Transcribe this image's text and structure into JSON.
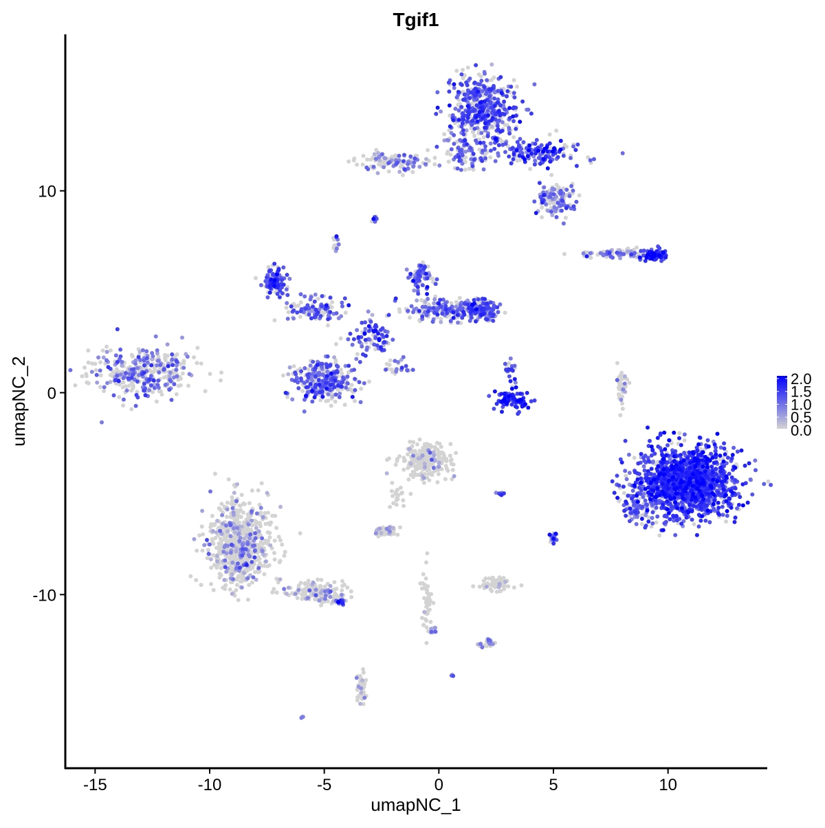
{
  "chart_data": {
    "type": "scatter",
    "title": "Tgif1",
    "xlabel": "umapNC_1",
    "ylabel": "umapNC_2",
    "xlim": [
      -16.3,
      14.3
    ],
    "ylim": [
      -18.6,
      17.75
    ],
    "x_ticks": [
      -15,
      -10,
      -5,
      0,
      5,
      10
    ],
    "y_ticks": [
      -10,
      0,
      10
    ],
    "x_tick_labels": [
      "-15",
      "-10",
      "-5",
      "0",
      "5",
      "10"
    ],
    "y_tick_labels": [
      "-10",
      "0",
      "10"
    ],
    "grid": false,
    "legend": {
      "placement": "right",
      "type": "colorbar",
      "range": [
        0,
        2
      ],
      "ticks": [
        "2.0",
        "1.5",
        "1.0",
        "0.5",
        "0.0"
      ],
      "low_color": "#d3d3d3",
      "high_color": "#0000ff"
    },
    "clusters_note_free": true,
    "clusters": [
      {
        "cx": -12.85,
        "cy": 1.05,
        "sx": 1.6,
        "sy": 0.8,
        "n": 350,
        "expr": 0.6
      },
      {
        "cx": 1.85,
        "cy": 14.0,
        "sx": 1.0,
        "sy": 1.2,
        "n": 450,
        "expr": 0.9
      },
      {
        "cx": 4.3,
        "cy": 11.9,
        "sx": 1.3,
        "sy": 0.45,
        "n": 150,
        "expr": 1.0
      },
      {
        "cx": 5.15,
        "cy": 9.6,
        "sx": 0.55,
        "sy": 0.55,
        "n": 120,
        "expr": 0.6
      },
      {
        "cx": -2.0,
        "cy": 11.45,
        "sx": 1.1,
        "sy": 0.3,
        "n": 120,
        "expr": 0.5
      },
      {
        "cx": 1.3,
        "cy": 11.8,
        "sx": 0.7,
        "sy": 0.5,
        "n": 80,
        "expr": 0.7
      },
      {
        "cx": -2.8,
        "cy": 8.6,
        "sx": 0.1,
        "sy": 0.1,
        "n": 10,
        "expr": 1.0
      },
      {
        "cx": -4.5,
        "cy": 7.45,
        "sx": 0.1,
        "sy": 0.2,
        "n": 12,
        "expr": 0.8
      },
      {
        "cx": 7.6,
        "cy": 6.9,
        "sx": 0.9,
        "sy": 0.15,
        "n": 70,
        "expr": 0.6
      },
      {
        "cx": 9.4,
        "cy": 6.85,
        "sx": 0.4,
        "sy": 0.2,
        "n": 80,
        "expr": 1.2
      },
      {
        "cx": -7.15,
        "cy": 5.5,
        "sx": 0.35,
        "sy": 0.5,
        "n": 120,
        "expr": 0.9
      },
      {
        "cx": -5.35,
        "cy": 4.1,
        "sx": 0.8,
        "sy": 0.4,
        "n": 100,
        "expr": 0.8
      },
      {
        "cx": -5.05,
        "cy": 0.55,
        "sx": 0.9,
        "sy": 0.65,
        "n": 300,
        "expr": 0.8
      },
      {
        "cx": 0.35,
        "cy": 4.1,
        "sx": 1.3,
        "sy": 0.35,
        "n": 200,
        "expr": 0.7
      },
      {
        "cx": 1.85,
        "cy": 4.1,
        "sx": 0.5,
        "sy": 0.35,
        "n": 150,
        "expr": 0.9
      },
      {
        "cx": -0.85,
        "cy": 5.8,
        "sx": 0.35,
        "sy": 0.45,
        "n": 80,
        "expr": 0.8
      },
      {
        "cx": -2.95,
        "cy": 2.75,
        "sx": 0.7,
        "sy": 0.55,
        "n": 80,
        "expr": 0.9
      },
      {
        "cx": -1.9,
        "cy": 1.2,
        "sx": 0.5,
        "sy": 0.3,
        "n": 25,
        "expr": 0.7
      },
      {
        "cx": 3.2,
        "cy": -0.4,
        "sx": 0.55,
        "sy": 0.3,
        "n": 80,
        "expr": 1.3
      },
      {
        "cx": 3.05,
        "cy": 1.05,
        "sx": 0.2,
        "sy": 0.4,
        "n": 20,
        "expr": 1.0
      },
      {
        "cx": 8.0,
        "cy": 0.2,
        "sx": 0.15,
        "sy": 0.7,
        "n": 40,
        "expr": 0.4
      },
      {
        "cx": 10.85,
        "cy": -4.4,
        "sx": 1.4,
        "sy": 1.15,
        "n": 1500,
        "expr": 1.1
      },
      {
        "cx": 8.6,
        "cy": -5.75,
        "sx": 0.45,
        "sy": 0.65,
        "n": 80,
        "expr": 0.8
      },
      {
        "cx": -0.55,
        "cy": -3.35,
        "sx": 0.7,
        "sy": 0.55,
        "n": 250,
        "expr": 0.15
      },
      {
        "cx": -2.35,
        "cy": -6.8,
        "sx": 0.35,
        "sy": 0.2,
        "n": 50,
        "expr": 0.3
      },
      {
        "cx": -1.75,
        "cy": -5.1,
        "sx": 0.3,
        "sy": 0.5,
        "n": 20,
        "expr": 0.1
      },
      {
        "cx": 2.45,
        "cy": -9.5,
        "sx": 0.45,
        "sy": 0.25,
        "n": 60,
        "expr": 0.1
      },
      {
        "cx": 5.0,
        "cy": -7.3,
        "sx": 0.1,
        "sy": 0.3,
        "n": 20,
        "expr": 1.0
      },
      {
        "cx": 2.75,
        "cy": -5.0,
        "sx": 0.15,
        "sy": 0.05,
        "n": 8,
        "expr": 1.0
      },
      {
        "cx": -8.65,
        "cy": -7.45,
        "sx": 0.9,
        "sy": 1.4,
        "n": 700,
        "expr": 0.3
      },
      {
        "cx": -5.35,
        "cy": -9.85,
        "sx": 0.9,
        "sy": 0.35,
        "n": 150,
        "expr": 0.3
      },
      {
        "cx": -4.3,
        "cy": -10.35,
        "sx": 0.2,
        "sy": 0.1,
        "n": 20,
        "expr": 0.9
      },
      {
        "cx": -0.55,
        "cy": -10.5,
        "sx": 0.15,
        "sy": 1.1,
        "n": 50,
        "expr": 0.05
      },
      {
        "cx": 2.15,
        "cy": -12.4,
        "sx": 0.25,
        "sy": 0.15,
        "n": 25,
        "expr": 0.4
      },
      {
        "cx": -3.4,
        "cy": -14.6,
        "sx": 0.15,
        "sy": 0.55,
        "n": 40,
        "expr": 0.2
      },
      {
        "cx": -6.0,
        "cy": -16.1,
        "sx": 0.05,
        "sy": 0.05,
        "n": 3,
        "expr": 0.8
      },
      {
        "cx": 0.6,
        "cy": -14.0,
        "sx": 0.05,
        "sy": 0.05,
        "n": 3,
        "expr": 0.8
      },
      {
        "cx": -0.2,
        "cy": -11.8,
        "sx": 0.1,
        "sy": 0.2,
        "n": 8,
        "expr": 0.5
      }
    ]
  }
}
